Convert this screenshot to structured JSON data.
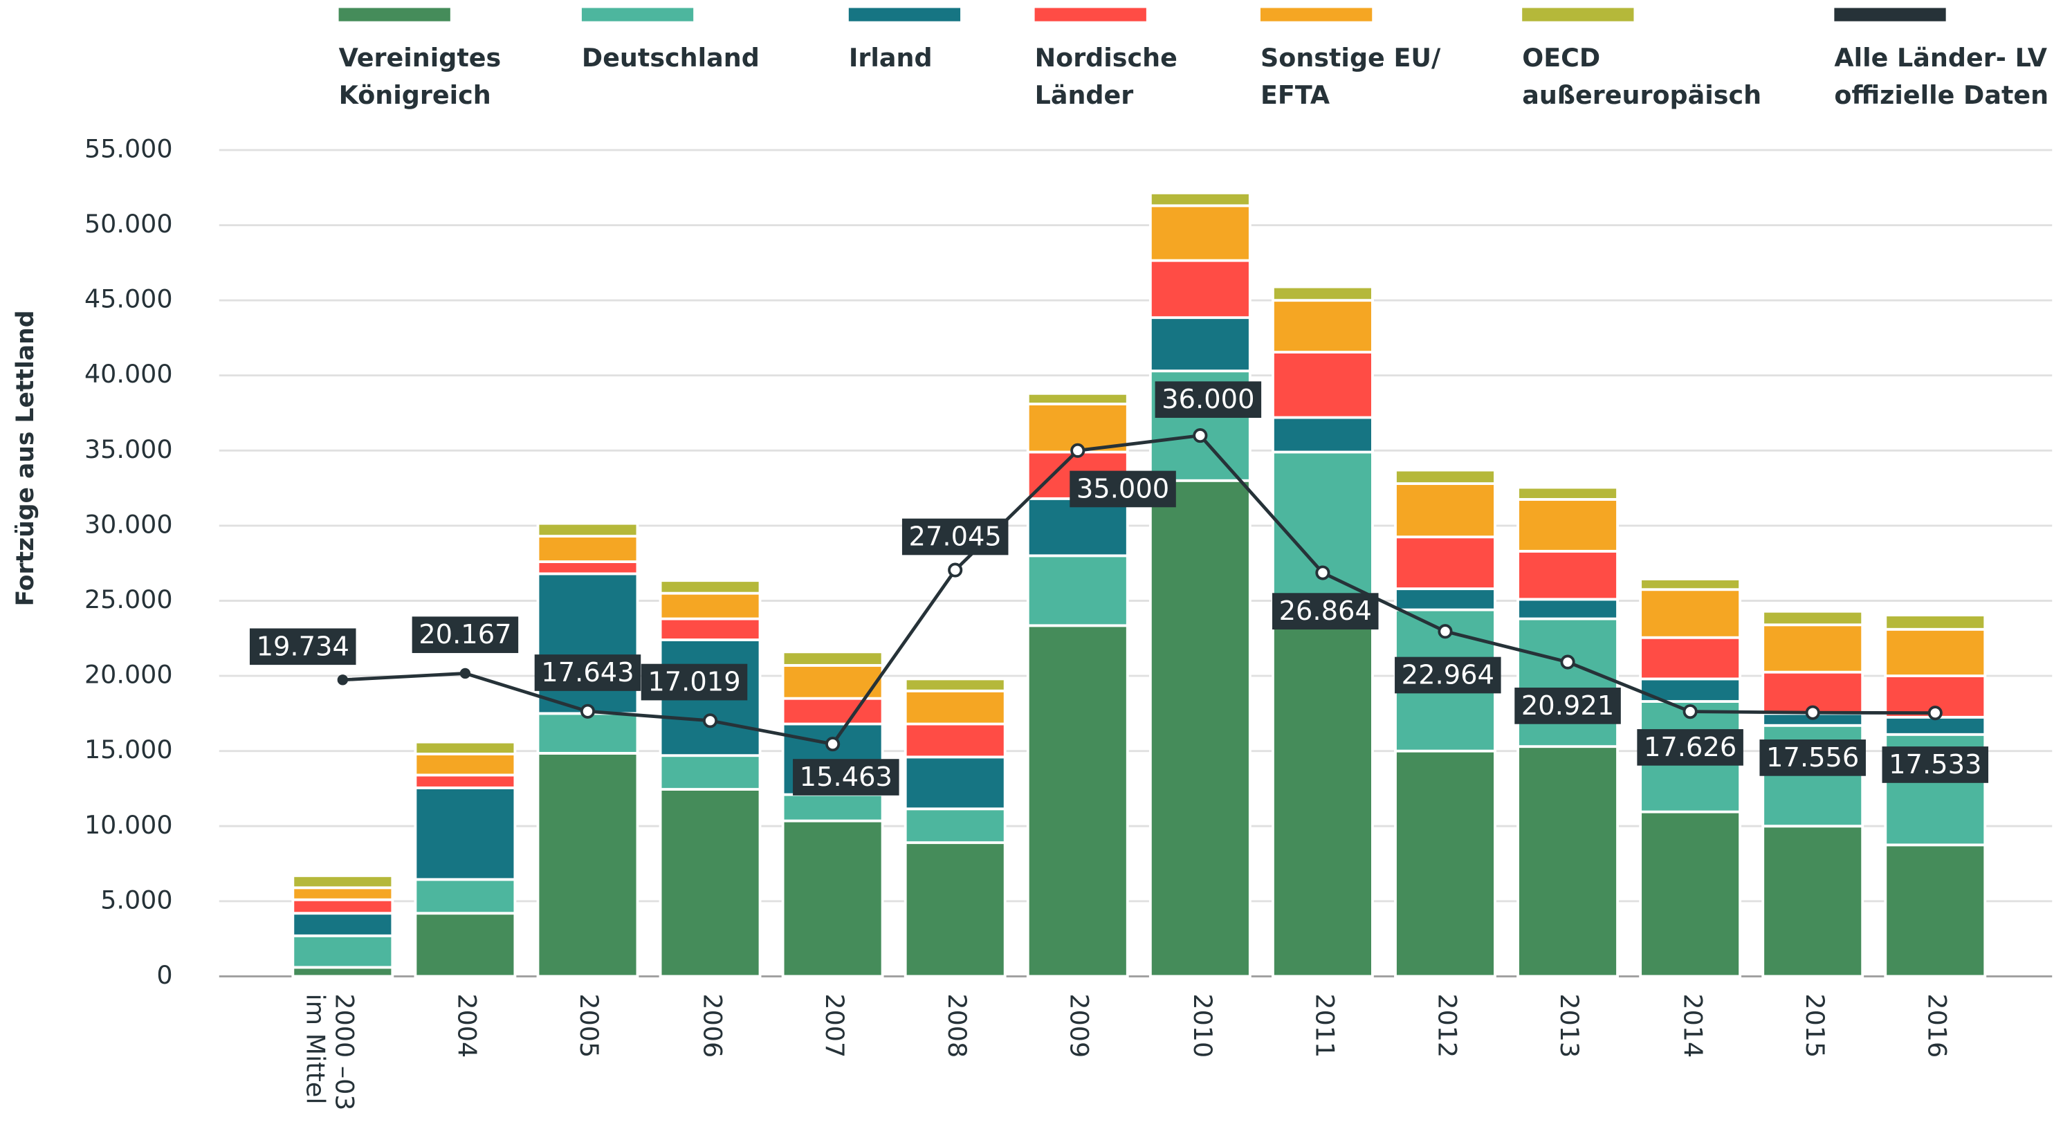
{
  "chart_data": {
    "type": "bar",
    "stacked": true,
    "y_axis_label": "Fortzüge aus Lettland",
    "categories": [
      "2000 –03 im Mittel",
      "2004",
      "2005",
      "2006",
      "2007",
      "2008",
      "2009",
      "2010",
      "2011",
      "2012",
      "2013",
      "2014",
      "2015",
      "2016"
    ],
    "series": [
      {
        "name": "Vereinigtes Königreich",
        "color": "#458c5a",
        "values": [
          600,
          4200,
          14850,
          12450,
          10350,
          8900,
          23350,
          33000,
          24850,
          15000,
          15300,
          10950,
          10000,
          8750
        ]
      },
      {
        "name": "Deutschland",
        "color": "#4db69e",
        "values": [
          2100,
          2250,
          2650,
          2250,
          1750,
          2250,
          4650,
          7300,
          10050,
          9400,
          8500,
          7350,
          6700,
          7350
        ]
      },
      {
        "name": "Irland",
        "color": "#167583",
        "values": [
          1500,
          6100,
          9300,
          7700,
          4700,
          3450,
          3800,
          3550,
          2300,
          1400,
          1300,
          1500,
          800,
          1150
        ]
      },
      {
        "name": "Nordische Länder",
        "color": "#ff4c45",
        "values": [
          900,
          850,
          800,
          1400,
          1700,
          2200,
          3100,
          3800,
          4350,
          3450,
          3200,
          2750,
          2750,
          2750
        ]
      },
      {
        "name": "Sonstige EU/ EFTA",
        "color": "#f5a623",
        "values": [
          800,
          1400,
          1700,
          1700,
          2200,
          2200,
          3200,
          3650,
          3450,
          3550,
          3450,
          3200,
          3150,
          3100
        ]
      },
      {
        "name": "OECD außereuropäisch",
        "color": "#b5b83a",
        "values": [
          800,
          800,
          850,
          850,
          900,
          800,
          700,
          850,
          900,
          900,
          800,
          700,
          900,
          950
        ]
      },
      {
        "name": "Alle Länder- LV offizielle Daten",
        "color": "#263238",
        "type": "line",
        "values": [
          19734,
          20167,
          17643,
          17019,
          15463,
          27045,
          35000,
          36000,
          26864,
          22964,
          20921,
          17626,
          17556,
          17533
        ],
        "value_labels": [
          "19.734",
          "20.167",
          "17.643",
          "17.019",
          "15.463",
          "27.045",
          "35.000",
          "36.000",
          "26.864",
          "22.964",
          "20.921",
          "17.626",
          "17.556",
          "17.533"
        ]
      }
    ],
    "ylim": [
      0,
      55000
    ],
    "yticks": [
      0,
      {
        "value": 5000,
        "label": "5.000"
      },
      {
        "value": 10000,
        "label": "10.000"
      },
      {
        "value": 15000,
        "label": "15.000"
      },
      {
        "value": 20000,
        "label": "20.000"
      },
      {
        "value": 25000,
        "label": "25.000"
      },
      {
        "value": 30000,
        "label": "30.000"
      },
      {
        "value": 35000,
        "label": "35.000"
      },
      {
        "value": 40000,
        "label": "40.000"
      },
      {
        "value": 45000,
        "label": "45.000"
      },
      {
        "value": 50000,
        "label": "50.000"
      },
      {
        "value": 55000,
        "label": "55.000"
      }
    ],
    "grid": true,
    "legend": "top"
  }
}
